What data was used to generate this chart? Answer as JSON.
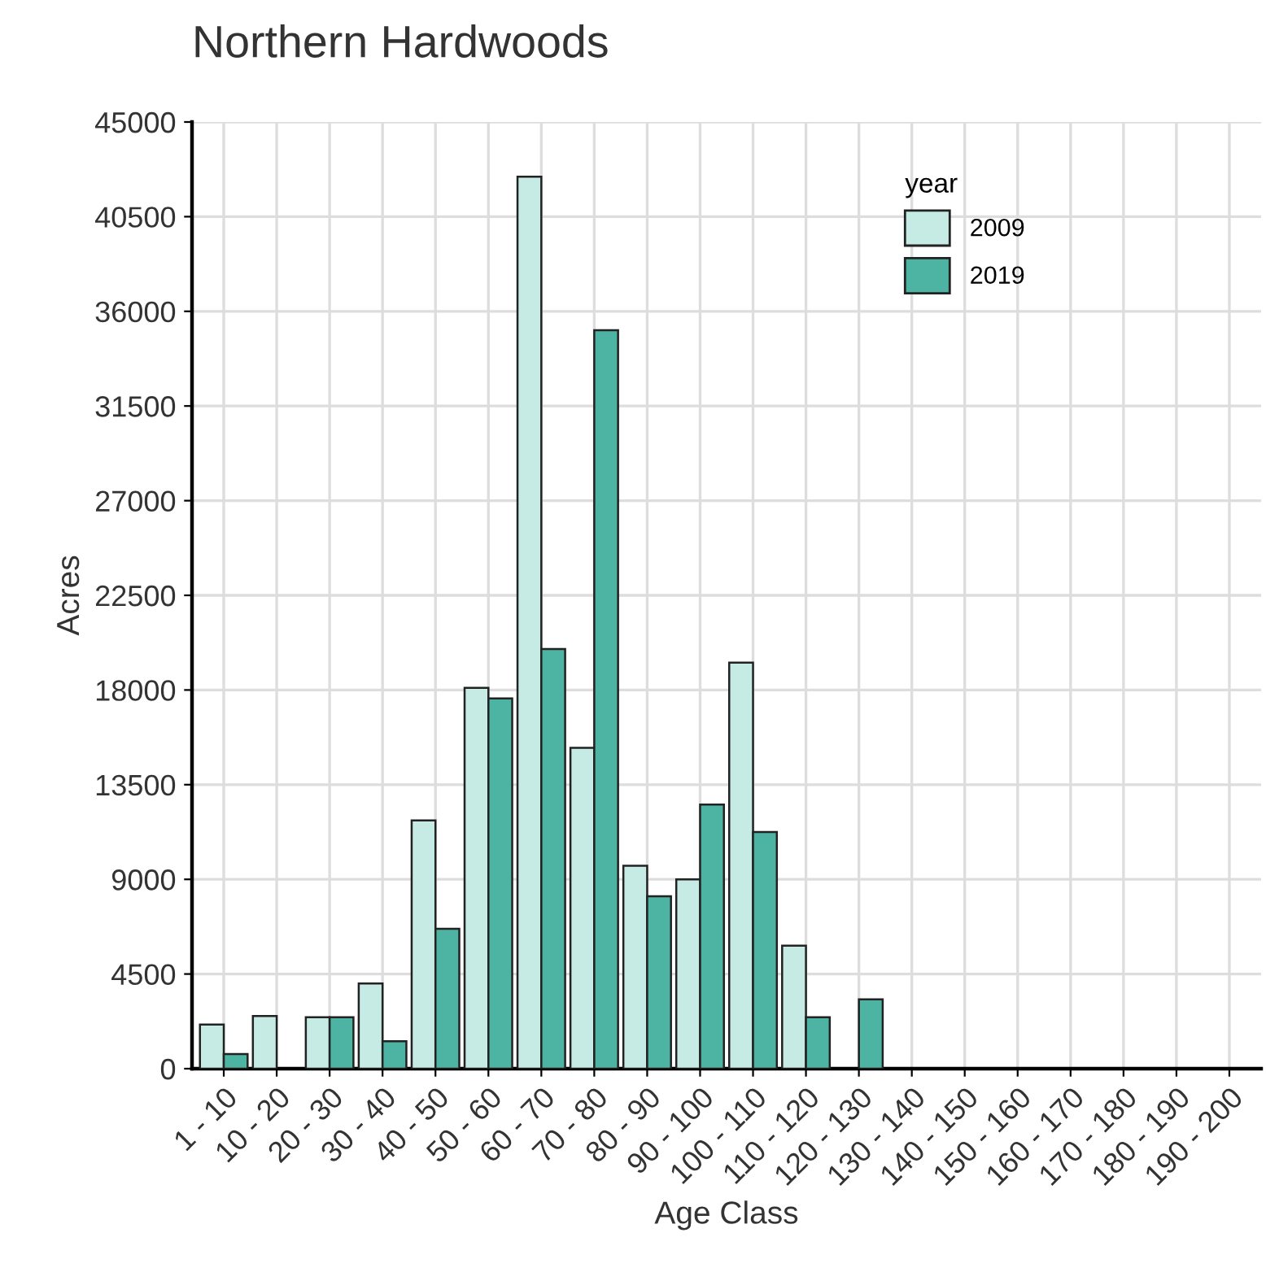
{
  "chart_data": {
    "type": "bar",
    "title": "Northern Hardwoods",
    "xlabel": "Age Class",
    "ylabel": "Acres",
    "legend_title": "year",
    "categories": [
      "1 - 10",
      "10 - 20",
      "20 - 30",
      "30 - 40",
      "40 - 50",
      "50 - 60",
      "60 - 70",
      "70 - 80",
      "80 - 90",
      "90 - 100",
      "100 - 110",
      "110 - 120",
      "120 - 130",
      "130 - 140",
      "140 - 150",
      "150 - 160",
      "160 - 170",
      "170 - 180",
      "180 - 190",
      "190 - 200"
    ],
    "series": [
      {
        "name": "2009",
        "color": "#c6ebe4",
        "values": [
          2100,
          2500,
          2450,
          4050,
          11800,
          18100,
          42400,
          15250,
          9650,
          9000,
          19300,
          5850,
          null,
          null,
          null,
          null,
          null,
          null,
          null,
          null
        ]
      },
      {
        "name": "2019",
        "color": "#4db3a2",
        "values": [
          700,
          null,
          2450,
          1300,
          6650,
          17600,
          19950,
          35100,
          8200,
          12550,
          11250,
          2450,
          3300,
          null,
          null,
          null,
          null,
          null,
          null,
          null
        ]
      }
    ],
    "ylim": [
      0,
      45000
    ],
    "yticks": [
      0,
      4500,
      9000,
      13500,
      18000,
      22500,
      27000,
      31500,
      36000,
      40500,
      45000
    ],
    "grid": true,
    "legend": "top right"
  }
}
